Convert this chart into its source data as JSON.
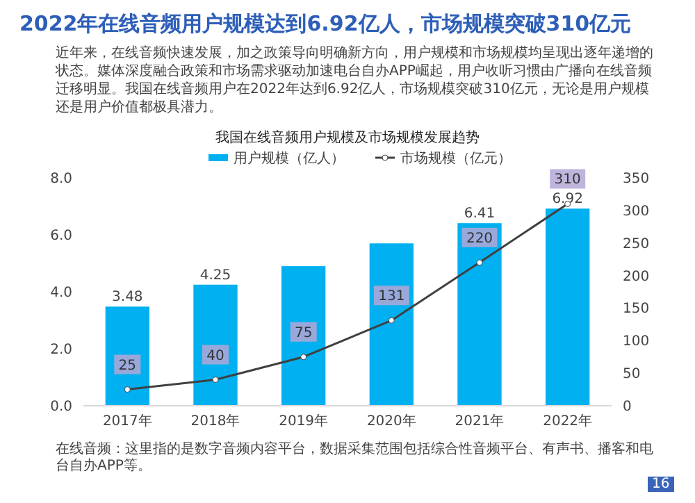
{
  "chart_data": {
    "type": "bar",
    "title": "2022年在线音频用户规模达到6.92亿人，市场规模突破310亿元",
    "subtitle": "我国在线音频用户规模及市场规模发展趋势",
    "annotations": [
      "近年来，在线音频快速发展，加之政策导向明确新方向，用户规模和市场规模均呈现出逐年递增的状态。媒体深度融合政策和市场需求驱动加速电台自办APP崛起，用户收听习惯由广播向在线音频迁移明显。我国在线音频用户在2022年达到6.92亿人，市场规模突破310亿元，无论是用户规模还是用户价值都极具潜力。",
      "在线音频：这里指的是数字音频内容平台，数据采集范围包括综合性音频平台、有声书、播客和电台自办APP等。",
      "16"
    ],
    "categories": [
      "2017年",
      "2018年",
      "2019年",
      "2020年",
      "2021年",
      "2022年"
    ],
    "series": [
      {
        "name": "用户规模（亿人）",
        "color": "#00b0f0",
        "values": [
          3.48,
          4.25,
          4.9,
          5.7,
          6.41,
          6.92
        ],
        "value_labels": [
          "3.48",
          "4.25",
          null,
          null,
          "6.41",
          "6.92"
        ]
      },
      {
        "name": "市场规模（亿元）",
        "type": "line",
        "axis": "y2",
        "color": "#404040",
        "marker": "circle",
        "values": [
          25,
          40,
          75,
          131,
          220,
          310
        ],
        "value_labels": [
          "25",
          "40",
          "75",
          "131",
          "220",
          "310"
        ]
      }
    ],
    "ylim": [
      0,
      8
    ],
    "yticks": [
      {
        "value": 0,
        "label": "0.0"
      },
      {
        "value": 2,
        "label": "2.0"
      },
      {
        "value": 4,
        "label": "4.0"
      },
      {
        "value": 6,
        "label": "6.0"
      },
      {
        "value": 8,
        "label": "8.0"
      }
    ],
    "y2lim": [
      0,
      350
    ],
    "y2ticks": [
      0,
      50,
      100,
      150,
      200,
      250,
      300,
      350
    ],
    "legend": "top"
  }
}
